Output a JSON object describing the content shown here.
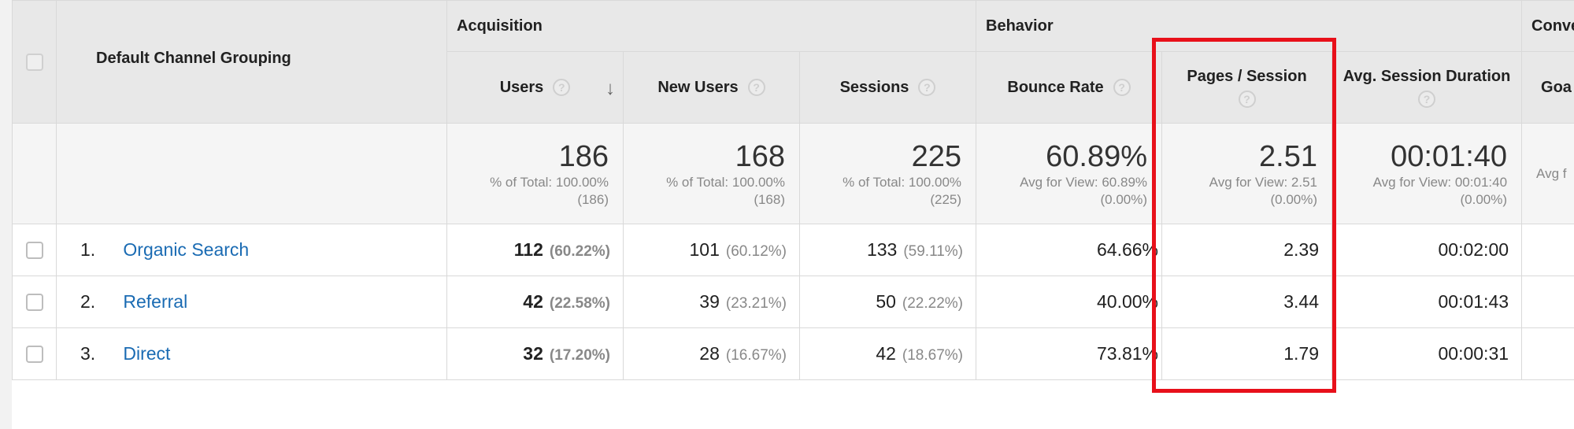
{
  "groups": {
    "acquisition": "Acquisition",
    "behavior": "Behavior",
    "conversions": "Conve"
  },
  "header": {
    "dimension": "Default Channel Grouping",
    "users": "Users",
    "new_users": "New Users",
    "sessions": "Sessions",
    "bounce_rate": "Bounce Rate",
    "pages_session": "Pages / Session",
    "avg_duration": "Avg. Session Duration",
    "goal": "Goa",
    "help_glyph": "?",
    "sort_glyph": "↓"
  },
  "totals": {
    "users": {
      "value": "186",
      "label": "% of Total: 100.00%",
      "sub": "(186)"
    },
    "new_users": {
      "value": "168",
      "label": "% of Total: 100.00%",
      "sub": "(168)"
    },
    "sessions": {
      "value": "225",
      "label": "% of Total: 100.00%",
      "sub": "(225)"
    },
    "bounce_rate": {
      "value": "60.89%",
      "label": "Avg for View: 60.89%",
      "sub": "(0.00%)"
    },
    "pages_session": {
      "value": "2.51",
      "label": "Avg for View: 2.51",
      "sub": "(0.00%)"
    },
    "avg_duration": {
      "value": "00:01:40",
      "label": "Avg for View: 00:01:40",
      "sub": "(0.00%)"
    },
    "goal": {
      "label": "Avg f"
    }
  },
  "rows": [
    {
      "index": "1.",
      "channel": "Organic Search",
      "users": "112",
      "users_pct": "(60.22%)",
      "new_users": "101",
      "new_users_pct": "(60.12%)",
      "sessions": "133",
      "sessions_pct": "(59.11%)",
      "bounce_rate": "64.66%",
      "pages_session": "2.39",
      "avg_duration": "00:02:00"
    },
    {
      "index": "2.",
      "channel": "Referral",
      "users": "42",
      "users_pct": "(22.58%)",
      "new_users": "39",
      "new_users_pct": "(23.21%)",
      "sessions": "50",
      "sessions_pct": "(22.22%)",
      "bounce_rate": "40.00%",
      "pages_session": "3.44",
      "avg_duration": "00:01:43"
    },
    {
      "index": "3.",
      "channel": "Direct",
      "users": "32",
      "users_pct": "(17.20%)",
      "new_users": "28",
      "new_users_pct": "(16.67%)",
      "sessions": "42",
      "sessions_pct": "(18.67%)",
      "bounce_rate": "73.81%",
      "pages_session": "1.79",
      "avg_duration": "00:00:31"
    }
  ],
  "colors": {
    "link": "#1a6bb3",
    "highlight": "#e8101a",
    "header_bg": "#e8e8e8",
    "totals_bg": "#f5f5f5"
  }
}
